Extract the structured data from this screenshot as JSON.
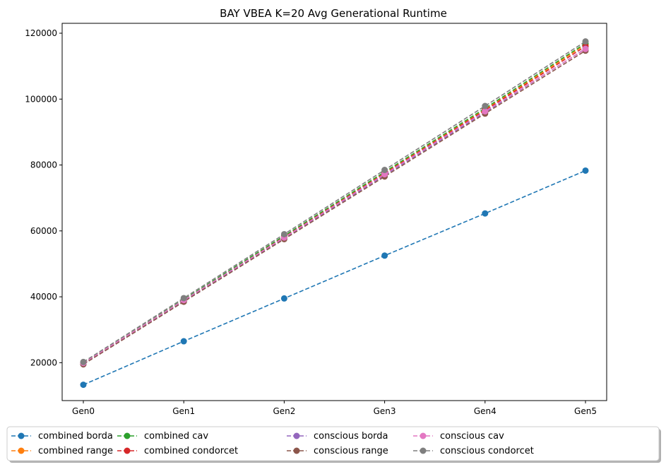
{
  "chart_data": {
    "type": "line",
    "title": "BAY VBEA K=20 Avg Generational Runtime",
    "xlabel": "",
    "ylabel": "",
    "categories": [
      "Gen0",
      "Gen1",
      "Gen2",
      "Gen3",
      "Gen4",
      "Gen5"
    ],
    "ylim": [
      8500,
      123000
    ],
    "yticks": [
      20000,
      40000,
      60000,
      80000,
      100000,
      120000
    ],
    "legend_position": "bottom",
    "grid": false,
    "series": [
      {
        "name": "combined borda",
        "color": "#1f77b4",
        "values": [
          13300,
          26500,
          39500,
          52500,
          65300,
          78300
        ]
      },
      {
        "name": "combined range",
        "color": "#ff7f0e",
        "values": [
          19800,
          39000,
          58300,
          77700,
          96900,
          116500
        ]
      },
      {
        "name": "combined cav",
        "color": "#2ca02c",
        "values": [
          19900,
          39200,
          58500,
          77900,
          97200,
          116900
        ]
      },
      {
        "name": "combined condorcet",
        "color": "#d62728",
        "values": [
          19700,
          38800,
          58100,
          77400,
          96600,
          116000
        ]
      },
      {
        "name": "conscious borda",
        "color": "#9467bd",
        "values": [
          19600,
          38700,
          57800,
          76900,
          96000,
          115300
        ]
      },
      {
        "name": "conscious range",
        "color": "#8c564b",
        "values": [
          19500,
          38500,
          57500,
          76500,
          95600,
          114700
        ]
      },
      {
        "name": "conscious cav",
        "color": "#e377c2",
        "values": [
          19900,
          39000,
          58000,
          77200,
          96300,
          115200
        ]
      },
      {
        "name": "conscious condorcet",
        "color": "#7f7f7f",
        "values": [
          20200,
          39600,
          59000,
          78500,
          97900,
          117500
        ]
      }
    ]
  }
}
